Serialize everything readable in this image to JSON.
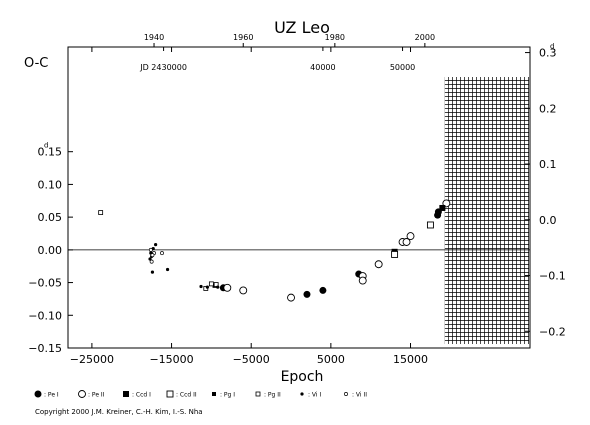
{
  "chart_data": {
    "type": "scatter",
    "title": "UZ Leo",
    "ylabel": "O-C",
    "xlabel": "Epoch",
    "xlim": [
      -28000,
      30000
    ],
    "ylim": [
      -0.15,
      0.31
    ],
    "right_ylim": [
      -0.23,
      0.31
    ],
    "x_ticks": [
      -25000,
      -15000,
      -5000,
      5000,
      15000
    ],
    "x_tick_labels": [
      "−25000",
      "−15000",
      "−5000",
      "5000",
      "15000"
    ],
    "y_ticks": [
      -0.15,
      -0.1,
      -0.05,
      0.0,
      0.05,
      0.1,
      0.15
    ],
    "y_tick_labels": [
      "−0.15",
      "−0.10",
      "−0.05",
      "0.00",
      "0.05",
      "0.10",
      "0.15"
    ],
    "right_ticks": [
      -0.2,
      -0.1,
      0.0,
      0.1,
      0.2,
      0.3
    ],
    "right_tick_labels": [
      "−0.2",
      "−0.1",
      "0.0",
      "0.1",
      "0.2",
      "0.3"
    ],
    "top_year_ticks": [
      {
        "x": -17200,
        "label": "1940"
      },
      {
        "x": -6000,
        "label": "1960"
      },
      {
        "x": 5500,
        "label": "1980"
      },
      {
        "x": 16800,
        "label": "2000"
      }
    ],
    "jd_ticks": [
      {
        "x": -16000,
        "label": "JD 2430000"
      },
      {
        "x": 4000,
        "label": "40000"
      },
      {
        "x": 14000,
        "label": "50000"
      }
    ],
    "day_superscript": "d",
    "zero_line": true,
    "hatched_future_from_x": 19300,
    "series": [
      {
        "name": "Pe I",
        "marker": "filled-circle",
        "points": [
          [
            -8500,
            -0.058
          ],
          [
            2000,
            -0.068
          ],
          [
            4000,
            -0.062
          ],
          [
            8500,
            -0.037
          ],
          [
            18400,
            0.053
          ],
          [
            18500,
            0.058
          ]
        ]
      },
      {
        "name": "Pe II",
        "marker": "open-circle",
        "points": [
          [
            -8000,
            -0.058
          ],
          [
            -6000,
            -0.062
          ],
          [
            0,
            -0.073
          ],
          [
            9000,
            -0.04
          ],
          [
            9000,
            -0.047
          ],
          [
            11000,
            -0.022
          ],
          [
            14000,
            0.012
          ],
          [
            14500,
            0.012
          ],
          [
            15000,
            0.021
          ],
          [
            19500,
            0.071
          ]
        ]
      },
      {
        "name": "Ccd I",
        "marker": "filled-square",
        "points": [
          [
            13000,
            -0.003
          ],
          [
            19000,
            0.064
          ]
        ]
      },
      {
        "name": "Ccd II",
        "marker": "open-square",
        "points": [
          [
            13000,
            -0.007
          ],
          [
            17500,
            0.038
          ]
        ]
      },
      {
        "name": "Pg I",
        "marker": "small-filled-square",
        "points": [
          [
            -9600,
            -0.055
          ]
        ]
      },
      {
        "name": "Pg II",
        "marker": "small-open-square",
        "points": [
          [
            -23900,
            0.057
          ],
          [
            -10000,
            -0.052
          ],
          [
            -9400,
            -0.053
          ],
          [
            -10700,
            -0.059
          ]
        ]
      },
      {
        "name": "Vi I",
        "marker": "small-filled-dot",
        "points": [
          [
            -17700,
            -0.014
          ],
          [
            -17600,
            -0.005
          ],
          [
            -17500,
            -0.01
          ],
          [
            -17400,
            -0.034
          ],
          [
            -17000,
            0.008
          ],
          [
            -17300,
            0.002
          ],
          [
            -11300,
            -0.056
          ],
          [
            -10500,
            -0.057
          ],
          [
            -9200,
            -0.057
          ],
          [
            -15500,
            -0.03
          ]
        ]
      },
      {
        "name": "Vi II",
        "marker": "small-open-dot",
        "points": [
          [
            -17600,
            0.0
          ],
          [
            -17500,
            -0.018
          ],
          [
            -17200,
            -0.005
          ],
          [
            -16200,
            -0.005
          ],
          [
            -17400,
            -0.008
          ]
        ]
      }
    ],
    "legend": {
      "placement": "bottom",
      "items": [
        {
          "marker": "filled-circle",
          "label": ": Pe I"
        },
        {
          "marker": "open-circle",
          "label": ": Pe II"
        },
        {
          "marker": "filled-square",
          "label": ": Ccd I"
        },
        {
          "marker": "open-square",
          "label": ": Ccd II"
        },
        {
          "marker": "small-filled-square",
          "label": ": Pg I"
        },
        {
          "marker": "small-open-square",
          "label": ": Pg II"
        },
        {
          "marker": "small-filled-dot",
          "label": ": Vi I"
        },
        {
          "marker": "small-open-dot",
          "label": ": Vi II"
        }
      ]
    },
    "copyright": "Copyright 2000 J.M. Kreiner, C.-H. Kim, I.-S. Nha"
  }
}
